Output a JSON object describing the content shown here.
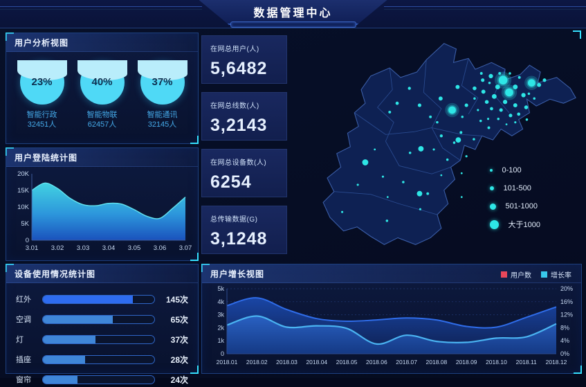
{
  "header": {
    "title": "数据管理中心"
  },
  "panels": {
    "user_analysis": {
      "title": "用户分析视图",
      "gauges": [
        {
          "percent": "23%",
          "label": "智能行政",
          "count": "32451人"
        },
        {
          "percent": "40%",
          "label": "智能物联",
          "count": "62457人"
        },
        {
          "percent": "37%",
          "label": "智能通讯",
          "count": "32145人"
        }
      ]
    },
    "login_stats": {
      "title": "用户登陆统计图"
    },
    "device_usage": {
      "title": "设备使用情况统计图"
    },
    "user_growth": {
      "title": "用户增长视图"
    }
  },
  "stat_cards": [
    {
      "label": "在网总用户(人)",
      "value": "5,6482"
    },
    {
      "label": "在网总线数(人)",
      "value": "3,2143"
    },
    {
      "label": "在网总设备数(人)",
      "value": "6254"
    },
    {
      "label": "总传输数据(G)",
      "value": "3,1248"
    }
  ],
  "map": {
    "legend": [
      {
        "label": "0-100",
        "size": 2
      },
      {
        "label": "101-500",
        "size": 3
      },
      {
        "label": "501-1000",
        "size": 4.5
      },
      {
        "label": "大于1000",
        "size": 6.5
      }
    ],
    "points": [
      [
        313,
        70,
        6.5,
        1
      ],
      [
        322,
        88,
        6,
        1
      ],
      [
        355,
        74,
        5.5,
        1
      ],
      [
        238,
        114,
        5.5,
        1
      ],
      [
        110,
        191,
        4.5,
        0
      ],
      [
        192,
        171,
        4,
        0
      ],
      [
        190,
        237,
        4,
        0
      ],
      [
        247,
        158,
        4,
        0
      ],
      [
        295,
        64,
        3.2,
        0
      ],
      [
        305,
        80,
        3.5,
        0
      ],
      [
        331,
        80,
        3.5,
        0
      ],
      [
        343,
        92,
        3.2,
        0
      ],
      [
        300,
        94,
        3.5,
        0
      ],
      [
        316,
        102,
        3.2,
        0
      ],
      [
        331,
        107,
        3,
        0
      ],
      [
        284,
        87,
        3,
        0
      ],
      [
        271,
        82,
        2.8,
        0
      ],
      [
        289,
        102,
        2.8,
        0
      ],
      [
        347,
        110,
        2.8,
        0
      ],
      [
        366,
        77,
        3,
        0
      ],
      [
        374,
        70,
        2.6,
        0
      ],
      [
        283,
        70,
        2.6,
        0
      ],
      [
        246,
        80,
        3,
        0
      ],
      [
        221,
        97,
        3,
        0
      ],
      [
        259,
        107,
        2.6,
        0
      ],
      [
        310,
        114,
        2.6,
        0
      ],
      [
        296,
        112,
        2.4,
        0
      ],
      [
        324,
        122,
        2.6,
        0
      ],
      [
        336,
        120,
        2.4,
        0
      ],
      [
        281,
        60,
        2,
        0
      ],
      [
        293,
        74,
        1.8,
        0
      ],
      [
        308,
        60,
        2,
        0
      ],
      [
        323,
        60,
        1.8,
        0
      ],
      [
        337,
        66,
        2,
        0
      ],
      [
        351,
        90,
        1.8,
        0
      ],
      [
        359,
        97,
        1.8,
        0
      ],
      [
        271,
        97,
        1.8,
        0
      ],
      [
        276,
        114,
        1.6,
        0
      ],
      [
        306,
        127,
        1.8,
        0
      ],
      [
        291,
        127,
        1.6,
        0
      ],
      [
        253,
        124,
        1.8,
        0
      ],
      [
        331,
        132,
        1.6,
        0
      ],
      [
        318,
        135,
        1.4,
        0
      ],
      [
        175,
        82,
        2.2,
        0
      ],
      [
        190,
        107,
        2.6,
        0
      ],
      [
        157,
        104,
        2.4,
        0
      ],
      [
        146,
        117,
        2,
        0
      ],
      [
        206,
        124,
        2,
        0
      ],
      [
        216,
        132,
        1.8,
        0
      ],
      [
        222,
        152,
        2.2,
        0
      ],
      [
        251,
        147,
        2,
        0
      ],
      [
        270,
        157,
        1.8,
        0
      ],
      [
        241,
        162,
        1.8,
        0
      ],
      [
        211,
        172,
        1.6,
        0
      ],
      [
        176,
        177,
        1.8,
        0
      ],
      [
        231,
        187,
        1.8,
        0
      ],
      [
        259,
        182,
        1.6,
        0
      ],
      [
        136,
        212,
        1.6,
        0
      ],
      [
        166,
        220,
        1.8,
        0
      ],
      [
        202,
        237,
        2,
        0
      ],
      [
        99,
        224,
        1.6,
        0
      ],
      [
        76,
        264,
        1.6,
        0
      ],
      [
        142,
        277,
        1.8,
        0
      ],
      [
        191,
        260,
        1.6,
        0
      ],
      [
        222,
        210,
        1.4,
        0
      ],
      [
        252,
        207,
        1.4,
        0
      ],
      [
        124,
        172,
        1.4,
        0
      ],
      [
        143,
        242,
        1.4,
        0
      ],
      [
        252,
        242,
        1.4,
        0
      ],
      [
        292,
        140,
        2,
        0
      ],
      [
        280,
        130,
        1.8,
        0
      ],
      [
        348,
        128,
        1.8,
        0
      ]
    ]
  },
  "chart_data": [
    {
      "id": "login",
      "type": "area",
      "title": "用户登陆统计图",
      "x": [
        "3.01",
        "3.02",
        "3.03",
        "3.04",
        "3.05",
        "3.06",
        "3.07"
      ],
      "samples_k": [
        15.0,
        17.2,
        15.6,
        12.6,
        10.7,
        10.4,
        11.1,
        10.9,
        9.2,
        7.2,
        6.6,
        9.6,
        13.0
      ],
      "y_ticks": [
        "0",
        "5K",
        "10K",
        "15K",
        "20K"
      ],
      "ylim_k": [
        0,
        20
      ],
      "grid": false,
      "legend_position": "none"
    },
    {
      "id": "device",
      "type": "bar",
      "title": "设备使用情况统计图",
      "categories": [
        "红外",
        "空调",
        "灯",
        "插座",
        "窗帘"
      ],
      "values": [
        145,
        65,
        37,
        28,
        24
      ],
      "unit": "次",
      "bar_pct": [
        81,
        63,
        47,
        38,
        31
      ],
      "xlabel": "",
      "ylabel": ""
    },
    {
      "id": "growth",
      "type": "area",
      "title": "用户增长视图",
      "x": [
        "2018.01",
        "2018.02",
        "2018.03",
        "2018.04",
        "2018.05",
        "2018.06",
        "2018.07",
        "2018.08",
        "2018.09",
        "2018.10",
        "2018.11",
        "2018.12"
      ],
      "series": [
        {
          "name": "用户数",
          "axis": "left",
          "values_k": [
            3.7,
            4.3,
            3.4,
            2.7,
            2.5,
            2.6,
            2.75,
            2.6,
            2.1,
            2.05,
            2.8,
            3.6
          ]
        },
        {
          "name": "增长率",
          "axis": "right",
          "values_pct": [
            8.8,
            11.6,
            8.2,
            8.6,
            7.8,
            3.0,
            5.7,
            3.8,
            3.5,
            4.8,
            5.2,
            9.2
          ]
        }
      ],
      "left_ticks": [
        "0",
        "1k",
        "2k",
        "3k",
        "4k",
        "5k"
      ],
      "right_ticks": [
        "0%",
        "4%",
        "8%",
        "12%",
        "16%",
        "20%"
      ],
      "left_max_k": 5,
      "right_max_pct": 20,
      "grid": true,
      "legend_position": "top-right"
    }
  ],
  "colors": {
    "accent_cyan": "#35e0fe",
    "dot_cyan": "#2ee6e6",
    "panel_border": "#1d3f7e",
    "legend_user": "#e8475a",
    "legend_growth": "#38c8ec",
    "bar_fill_primary": "#2e6cf0",
    "bar_fill_secondary": "#3f86d8",
    "gauge_fill": "#4fd9f6",
    "gauge_fill_light": "#b9edfb",
    "growth_line_user": "#2f6ce8",
    "growth_line_rate": "#4ab4f2",
    "axis_text": "#c7d9f2"
  }
}
